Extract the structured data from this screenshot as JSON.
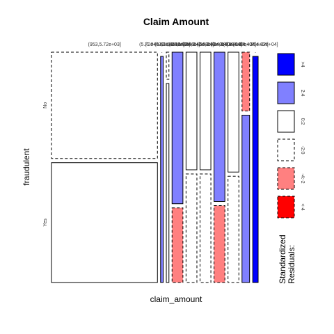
{
  "chart_data": {
    "type": "mosaic",
    "title": "Claim Amount",
    "xlabel": "claim_amount",
    "ylabel": "fraudulent",
    "y_categories": [
      "No",
      "Yes"
    ],
    "x_category_labels": [
      "(953,5.72e+03]",
      "(5.72e+03,1.04e+04]",
      "(1.04e+04,1.51e+04]",
      "(1.51e+04,1.98e+04]",
      "(1.98e+04,2.46e+04]",
      "(2.46e+04,2.93e+04]",
      "(2.93e+04,3.40e+04]",
      "(3.40e+04,3.88e+04]",
      "(3.88e+04,4.35e+04]",
      "(4.35e+04,4.82e+04]"
    ],
    "columns": [
      {
        "width": 0.488,
        "no_frac": 0.47,
        "res_no": "neutral_neg",
        "res_yes": "neutral_pos"
      },
      {
        "width": 0.012,
        "no_frac": 0.0,
        "res_no": "neutral_neg",
        "res_yes": "pos_med"
      },
      {
        "width": 0.012,
        "no_frac": 0.12,
        "res_no": "neutral_neg",
        "res_yes": "neutral_pos"
      },
      {
        "width": 0.05,
        "no_frac": 0.67,
        "res_no": "pos_med",
        "res_yes": "neg_med"
      },
      {
        "width": 0.05,
        "no_frac": 0.52,
        "res_no": "neutral_pos",
        "res_yes": "neutral_neg"
      },
      {
        "width": 0.05,
        "no_frac": 0.52,
        "res_no": "neutral_pos",
        "res_yes": "neutral_neg"
      },
      {
        "width": 0.05,
        "no_frac": 0.66,
        "res_no": "pos_med",
        "res_yes": "neg_med"
      },
      {
        "width": 0.05,
        "no_frac": 0.53,
        "res_no": "neutral_pos",
        "res_yes": "neutral_neg"
      },
      {
        "width": 0.035,
        "no_frac": 0.26,
        "res_no": "neg_med",
        "res_yes": "pos_med"
      },
      {
        "width": 0.025,
        "no_frac": 0.0,
        "res_no": "neutral_neg",
        "res_yes": "pos_high"
      }
    ],
    "legend": {
      "title": "Standardized\nResiduals:",
      "items": [
        {
          "label": ">4",
          "color": "#0000ff",
          "dashed": false
        },
        {
          "label": "2:4",
          "color": "#8080ff",
          "dashed": false
        },
        {
          "label": "0:2",
          "color": "#ffffff",
          "dashed": false
        },
        {
          "label": "-2:0",
          "color": "#ffffff",
          "dashed": true
        },
        {
          "label": "-4:-2",
          "color": "#ff8080",
          "dashed": true
        },
        {
          "label": "<-4",
          "color": "#ff0000",
          "dashed": true
        }
      ]
    },
    "residual_colors": {
      "pos_high": "#0000ff",
      "pos_med": "#8080ff",
      "neutral_pos": "#ffffff",
      "neutral_neg": "#ffffff",
      "neg_med": "#ff8080",
      "neg_high": "#ff0000"
    }
  }
}
